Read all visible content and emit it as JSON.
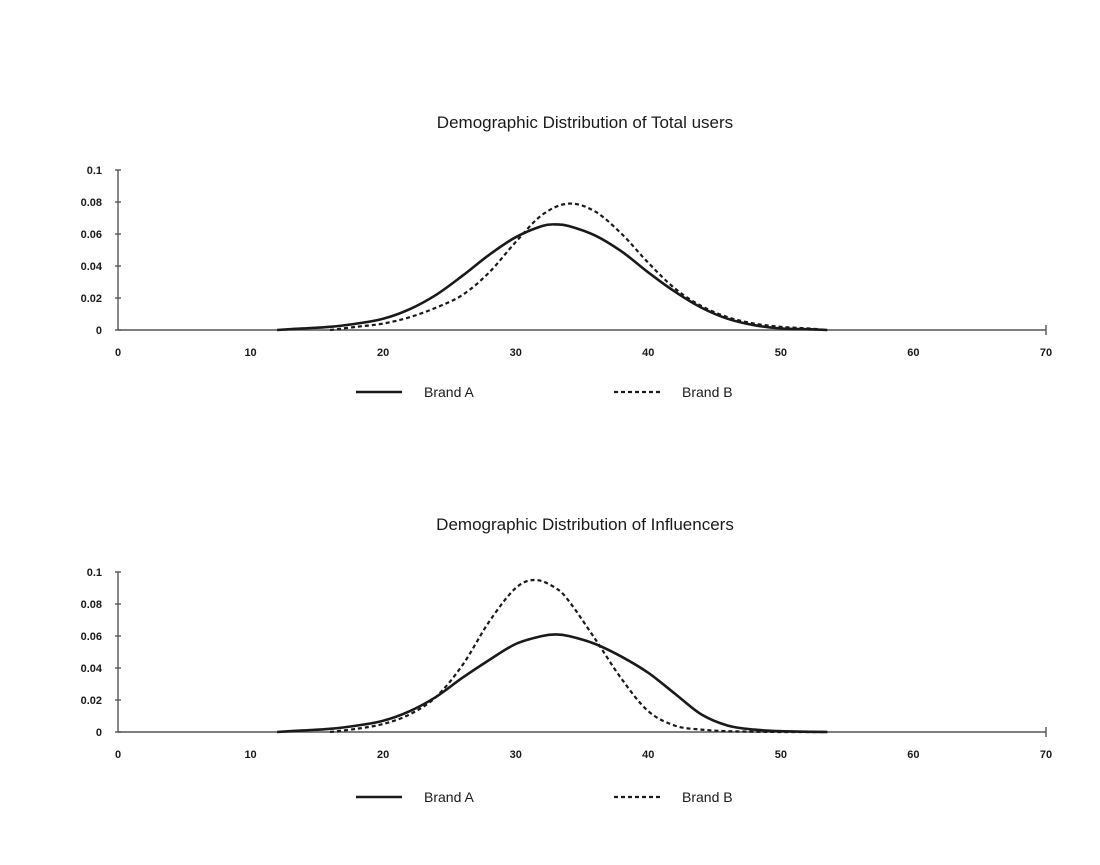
{
  "chart_data": [
    {
      "type": "line",
      "title": "Demographic Distribution of Total users",
      "xlabel": "",
      "ylabel": "",
      "xlim": [
        0,
        70
      ],
      "ylim": [
        0,
        0.1
      ],
      "x_ticks": [
        "0",
        "10",
        "20",
        "30",
        "40",
        "50",
        "60",
        "70"
      ],
      "y_ticks": [
        "0",
        "0.02",
        "0.04",
        "0.06",
        "0.08",
        "0.1"
      ],
      "grid": false,
      "legend": "bottom",
      "series": [
        {
          "name": "Brand A",
          "style": "solid",
          "x": [
            12,
            14,
            16,
            18,
            20,
            22,
            24,
            26,
            28,
            30,
            32,
            33,
            34,
            36,
            38,
            40,
            42,
            44,
            46,
            48,
            50,
            52,
            53.5
          ],
          "y": [
            0,
            0.001,
            0.002,
            0.004,
            0.007,
            0.013,
            0.022,
            0.034,
            0.047,
            0.058,
            0.065,
            0.066,
            0.065,
            0.059,
            0.049,
            0.036,
            0.024,
            0.014,
            0.007,
            0.003,
            0.001,
            0.0005,
            0
          ]
        },
        {
          "name": "Brand B",
          "style": "dashed",
          "x": [
            16,
            18,
            20,
            22,
            24,
            26,
            28,
            30,
            32,
            34,
            36,
            38,
            40,
            42,
            44,
            46,
            48,
            50,
            52,
            53.5
          ],
          "y": [
            0,
            0.002,
            0.004,
            0.008,
            0.014,
            0.022,
            0.036,
            0.055,
            0.072,
            0.079,
            0.074,
            0.06,
            0.042,
            0.026,
            0.015,
            0.008,
            0.004,
            0.002,
            0.001,
            0
          ]
        }
      ]
    },
    {
      "type": "line",
      "title": "Demographic Distribution of Influencers",
      "xlabel": "",
      "ylabel": "",
      "xlim": [
        0,
        70
      ],
      "ylim": [
        0,
        0.1
      ],
      "x_ticks": [
        "0",
        "10",
        "20",
        "30",
        "40",
        "50",
        "60",
        "70"
      ],
      "y_ticks": [
        "0",
        "0.02",
        "0.04",
        "0.06",
        "0.08",
        "0.1"
      ],
      "grid": false,
      "legend": "bottom",
      "series": [
        {
          "name": "Brand A",
          "style": "solid",
          "x": [
            12,
            14,
            16,
            18,
            20,
            22,
            24,
            26,
            28,
            30,
            32,
            33,
            34,
            36,
            38,
            40,
            42,
            44,
            46,
            48,
            50,
            53.5
          ],
          "y": [
            0,
            0.001,
            0.002,
            0.004,
            0.007,
            0.013,
            0.022,
            0.034,
            0.045,
            0.055,
            0.06,
            0.061,
            0.06,
            0.055,
            0.047,
            0.037,
            0.024,
            0.011,
            0.004,
            0.0015,
            0.0005,
            0
          ]
        },
        {
          "name": "Brand B",
          "style": "dashed",
          "x": [
            16,
            18,
            20,
            22,
            24,
            26,
            28,
            30,
            31.5,
            33,
            34,
            36,
            38,
            40,
            42,
            44,
            46,
            48,
            50,
            53.5
          ],
          "y": [
            0,
            0.002,
            0.005,
            0.011,
            0.022,
            0.042,
            0.069,
            0.09,
            0.095,
            0.09,
            0.082,
            0.058,
            0.033,
            0.013,
            0.004,
            0.0015,
            0.0005,
            0.0002,
            0,
            0
          ]
        }
      ]
    }
  ]
}
